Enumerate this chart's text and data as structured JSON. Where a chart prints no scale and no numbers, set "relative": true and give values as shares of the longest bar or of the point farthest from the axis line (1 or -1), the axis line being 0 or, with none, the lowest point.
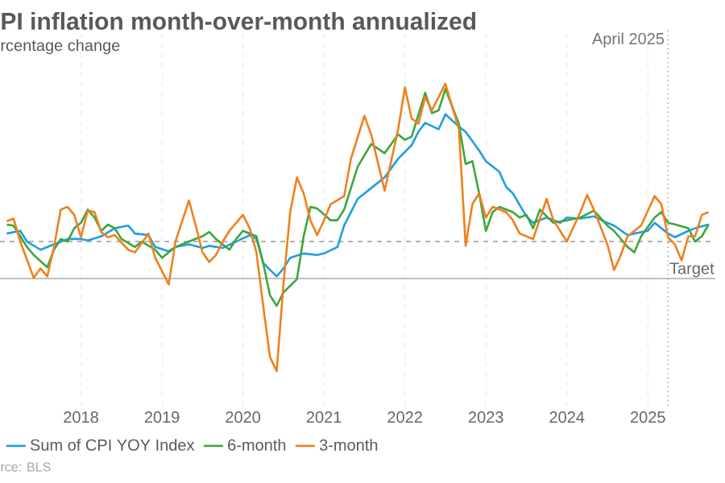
{
  "chart_data": {
    "type": "line",
    "title": "PI inflation month-over-month annualized",
    "subtitle": "rcentage change",
    "annotations": [
      "rce: BLS"
    ],
    "relative": true,
    "xlim": [
      "2017-01",
      "2025-11"
    ],
    "xticks": [
      "2018",
      "2019",
      "2020",
      "2021",
      "2022",
      "2023",
      "2024",
      "2025"
    ],
    "grid": "x",
    "legend": "bottom",
    "line_style": "solid",
    "ref_lines": [
      {
        "axis": "x",
        "value": "2025-04",
        "label": "April 2025",
        "color": "#aaaaaa",
        "line_style": "dotted"
      },
      {
        "axis": "y",
        "value": 0.19,
        "label": "Target",
        "color": "#999999",
        "line_style": "dashed"
      }
    ],
    "series": [
      {
        "name": "Sum of CPI YOY Index",
        "color": "#1e9fe0",
        "x": [
          "2017-02",
          "2017-04",
          "2017-05",
          "2017-07",
          "2017-09",
          "2017-11",
          "2018-01",
          "2018-02",
          "2018-04",
          "2018-06",
          "2018-08",
          "2018-09",
          "2018-11",
          "2018-12",
          "2019-02",
          "2019-03",
          "2019-05",
          "2019-07",
          "2019-08",
          "2019-10",
          "2019-12",
          "2020-02",
          "2020-03",
          "2020-04",
          "2020-06",
          "2020-07",
          "2020-08",
          "2020-10",
          "2020-12",
          "2021-01",
          "2021-03",
          "2021-04",
          "2021-06",
          "2021-10",
          "2021-12",
          "2022-02",
          "2022-03",
          "2022-04",
          "2022-06",
          "2022-07",
          "2022-09",
          "2022-10",
          "2022-12",
          "2023-01",
          "2023-03",
          "2023-04",
          "2023-05",
          "2023-07",
          "2023-08",
          "2023-10",
          "2023-12",
          "2024-01",
          "2024-03",
          "2024-05",
          "2024-07",
          "2024-08",
          "2024-10",
          "2024-11",
          "2025-01",
          "2025-02",
          "2025-04",
          "2025-05",
          "2025-07",
          "2025-08",
          "2025-10"
        ],
        "values": [
          0.231,
          0.245,
          0.19,
          0.148,
          0.176,
          0.203,
          0.203,
          0.195,
          0.217,
          0.258,
          0.272,
          0.231,
          0.223,
          0.162,
          0.14,
          0.162,
          0.176,
          0.157,
          0.168,
          0.157,
          0.19,
          0.223,
          0.203,
          0.08,
          0.011,
          0.052,
          0.107,
          0.129,
          0.121,
          0.129,
          0.162,
          0.272,
          0.409,
          0.519,
          0.615,
          0.684,
          0.753,
          0.799,
          0.766,
          0.843,
          0.78,
          0.753,
          0.657,
          0.602,
          0.547,
          0.47,
          0.437,
          0.319,
          0.286,
          0.313,
          0.286,
          0.313,
          0.308,
          0.319,
          0.286,
          0.272,
          0.223,
          0.231,
          0.245,
          0.286,
          0.231,
          0.212,
          0.245,
          0.258,
          0.278
        ]
      },
      {
        "name": "6-month",
        "color": "#3da63d",
        "x": [
          "2017-02",
          "2017-03",
          "2017-04",
          "2017-05",
          "2017-06",
          "2017-08",
          "2017-09",
          "2017-10",
          "2017-11",
          "2017-12",
          "2018-01",
          "2018-02",
          "2018-03",
          "2018-04",
          "2018-05",
          "2018-06",
          "2018-07",
          "2018-09",
          "2018-10",
          "2018-12",
          "2019-01",
          "2019-03",
          "2019-05",
          "2019-07",
          "2019-08",
          "2019-09",
          "2019-11",
          "2019-12",
          "2020-01",
          "2020-03",
          "2020-04",
          "2020-05",
          "2020-06",
          "2020-07",
          "2020-09",
          "2020-10",
          "2020-11",
          "2020-12",
          "2021-02",
          "2021-03",
          "2021-04",
          "2021-05",
          "2021-06",
          "2021-08",
          "2021-10",
          "2021-12",
          "2022-01",
          "2022-02",
          "2022-04",
          "2022-05",
          "2022-06",
          "2022-07",
          "2022-09",
          "2022-10",
          "2022-11",
          "2022-12",
          "2023-01",
          "2023-02",
          "2023-03",
          "2023-05",
          "2023-06",
          "2023-07",
          "2023-08",
          "2023-09",
          "2023-11",
          "2024-01",
          "2024-03",
          "2024-05",
          "2024-07",
          "2024-08",
          "2024-10",
          "2024-11",
          "2024-12",
          "2025-02",
          "2025-03",
          "2025-04",
          "2025-05",
          "2025-07",
          "2025-08",
          "2025-09",
          "2025-10"
        ],
        "values": [
          0.277,
          0.272,
          0.217,
          0.162,
          0.121,
          0.058,
          0.148,
          0.203,
          0.19,
          0.258,
          0.286,
          0.354,
          0.313,
          0.245,
          0.277,
          0.258,
          0.203,
          0.162,
          0.19,
          0.148,
          0.107,
          0.162,
          0.19,
          0.217,
          0.239,
          0.203,
          0.148,
          0.203,
          0.245,
          0.217,
          0.08,
          -0.085,
          -0.14,
          -0.071,
          -0.003,
          0.217,
          0.368,
          0.36,
          0.299,
          0.299,
          0.354,
          0.464,
          0.574,
          0.69,
          0.643,
          0.739,
          0.712,
          0.728,
          0.953,
          0.849,
          0.863,
          0.973,
          0.794,
          0.588,
          0.602,
          0.437,
          0.244,
          0.341,
          0.368,
          0.341,
          0.313,
          0.327,
          0.258,
          0.354,
          0.286,
          0.299,
          0.313,
          0.349,
          0.272,
          0.244,
          0.162,
          0.135,
          0.217,
          0.313,
          0.341,
          0.286,
          0.278,
          0.258,
          0.19,
          0.217,
          0.278
        ]
      },
      {
        "name": "3-month",
        "color": "#f0801f",
        "x": [
          "2017-02",
          "2017-03",
          "2017-04",
          "2017-06",
          "2017-07",
          "2017-08",
          "2017-09",
          "2017-10",
          "2017-11",
          "2017-12",
          "2018-01",
          "2018-02",
          "2018-03",
          "2018-04",
          "2018-05",
          "2018-06",
          "2018-08",
          "2018-09",
          "2018-11",
          "2018-12",
          "2019-02",
          "2019-03",
          "2019-05",
          "2019-06",
          "2019-07",
          "2019-08",
          "2019-09",
          "2019-10",
          "2019-11",
          "2020-01",
          "2020-02",
          "2020-03",
          "2020-04",
          "2020-05",
          "2020-06",
          "2020-07",
          "2020-08",
          "2020-09",
          "2020-10",
          "2020-11",
          "2020-12",
          "2021-01",
          "2021-02",
          "2021-04",
          "2021-05",
          "2021-06",
          "2021-07",
          "2021-08",
          "2021-10",
          "2021-12",
          "2022-01",
          "2022-02",
          "2022-03",
          "2022-04",
          "2022-05",
          "2022-07",
          "2022-09",
          "2022-10",
          "2022-11",
          "2022-12",
          "2023-01",
          "2023-02",
          "2023-04",
          "2023-05",
          "2023-06",
          "2023-08",
          "2023-10",
          "2023-11",
          "2024-01",
          "2024-03",
          "2024-04",
          "2024-05",
          "2024-07",
          "2024-08",
          "2024-09",
          "2024-10",
          "2024-12",
          "2025-02",
          "2025-03",
          "2025-04",
          "2025-05",
          "2025-06",
          "2025-07",
          "2025-08",
          "2025-09",
          "2025-10"
        ],
        "values": [
          0.294,
          0.308,
          0.19,
          0.003,
          0.052,
          0.011,
          0.162,
          0.354,
          0.368,
          0.327,
          0.212,
          0.349,
          0.341,
          0.239,
          0.212,
          0.223,
          0.148,
          0.135,
          0.231,
          0.107,
          -0.03,
          0.19,
          0.401,
          0.272,
          0.135,
          0.085,
          0.121,
          0.19,
          0.245,
          0.327,
          0.258,
          0.135,
          -0.14,
          -0.401,
          -0.475,
          -0.03,
          0.341,
          0.519,
          0.437,
          0.299,
          0.223,
          0.299,
          0.382,
          0.423,
          0.615,
          0.725,
          0.835,
          0.739,
          0.451,
          0.766,
          0.981,
          0.821,
          0.794,
          0.931,
          0.863,
          1.0,
          0.766,
          0.168,
          0.382,
          0.437,
          0.313,
          0.368,
          0.341,
          0.299,
          0.231,
          0.203,
          0.409,
          0.299,
          0.19,
          0.341,
          0.429,
          0.354,
          0.176,
          0.044,
          0.121,
          0.217,
          0.272,
          0.423,
          0.382,
          0.212,
          0.176,
          0.093,
          0.217,
          0.217,
          0.327,
          0.341
        ]
      }
    ]
  }
}
